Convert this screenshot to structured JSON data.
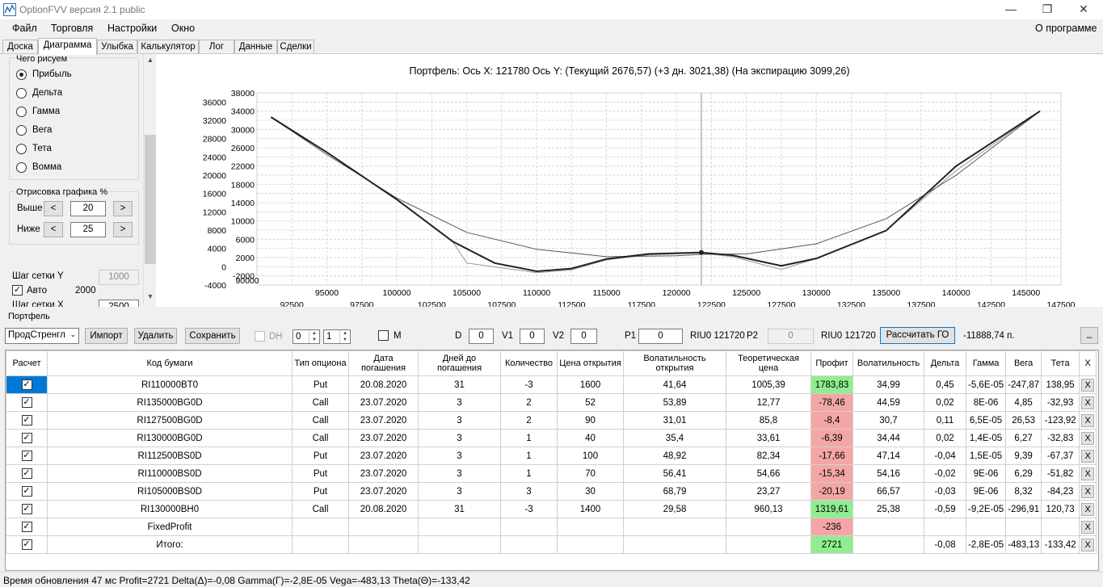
{
  "window": {
    "title": "OptionFVV версия 2.1 public",
    "minimize": "—",
    "restore": "❐",
    "close": "✕"
  },
  "menu": {
    "file": "Файл",
    "trading": "Торговля",
    "settings": "Настройки",
    "window": "Окно",
    "about": "О программе"
  },
  "tabs": [
    "Доска",
    "Диаграмма",
    "Улыбка",
    "Калькулятор",
    "Лог",
    "Данные",
    "Сделки"
  ],
  "left": {
    "what_title": "Чего рисуем",
    "options": [
      "Прибыль",
      "Дельта",
      "Гамма",
      "Вега",
      "Тета",
      "Вомма"
    ],
    "selected": 0,
    "draw_title": "Отрисовка графика %",
    "above_label": "Выше",
    "above_value": "20",
    "below_label": "Ниже",
    "below_value": "25",
    "dec": "<",
    "inc": ">",
    "grid_y_label": "Шаг сетки Y",
    "grid_y_value": "1000",
    "auto_label": "Авто",
    "auto_value": "2000",
    "grid_x_label": "Шаг сетки X",
    "grid_x_value": "2500"
  },
  "chart_data": {
    "type": "line",
    "title": "Портфель: Ось X: 121780 Ось Y:  (Текущий 2676,57)  (+3 дн. 3021,38)  (На экспирацию 3099,26)",
    "xlim": [
      90000,
      147500
    ],
    "ylim": [
      -4000,
      38000
    ],
    "x_ticks_upper": [
      95000,
      100000,
      105000,
      110000,
      115000,
      120000,
      125000,
      130000,
      135000,
      140000,
      145000
    ],
    "x_ticks_lower": [
      92500,
      97500,
      102500,
      107500,
      112500,
      117500,
      122500,
      127500,
      132500,
      137500,
      142500,
      147500
    ],
    "y_ticks_right": [
      -2000,
      2000,
      6000,
      10000,
      14000,
      18000,
      22000,
      26000,
      30000,
      34000,
      38000
    ],
    "y_ticks_left": [
      -4000,
      0,
      4000,
      8000,
      12000,
      16000,
      20000,
      24000,
      28000,
      32000,
      36000
    ],
    "cursor_x": 121780,
    "series": [
      {
        "values_x": [
          91000,
          95000,
          100000,
          104000,
          107000,
          110000,
          112500,
          115000,
          118000,
          121780,
          124000,
          127500,
          130000,
          135000,
          140000,
          146000
        ],
        "values_y": [
          32700,
          25000,
          14700,
          5500,
          800,
          -1000,
          -400,
          1700,
          2800,
          3100,
          2500,
          200,
          1800,
          7900,
          22000,
          34000
        ]
      },
      {
        "values_x": [
          91000,
          95000,
          100000,
          105000,
          110000,
          115000,
          120000,
          121780,
          125000,
          130000,
          135000,
          140000,
          146000
        ],
        "values_y": [
          32700,
          24500,
          15000,
          7500,
          3800,
          2200,
          2400,
          2700,
          2800,
          5000,
          10500,
          20000,
          34000
        ]
      },
      {
        "values_x": [
          91000,
          95000,
          100000,
          104000,
          105000,
          110000,
          112500,
          115000,
          118000,
          121780,
          124000,
          127500,
          130000,
          135000,
          140000,
          146000
        ],
        "values_y": [
          32700,
          25000,
          14700,
          5500,
          800,
          -1300,
          -700,
          1500,
          2600,
          3000,
          2200,
          -600,
          1800,
          7900,
          21000,
          34000
        ]
      }
    ]
  },
  "portfolio": {
    "label": "Портфель",
    "combo": "ПродСтренгл",
    "import": "Импорт",
    "delete": "Удалить",
    "save": "Сохранить",
    "dh": "DH",
    "spin1": "0",
    "spin2": "1",
    "m": "M",
    "d_label": "D",
    "d": "0",
    "v1_label": "V1",
    "v1": "0",
    "v2_label": "V2",
    "v2": "0",
    "p1_label": "P1",
    "p1": "0",
    "p1_ticker": "RIU0 121720",
    "p2_label": "P2",
    "p2": "0",
    "p2_ticker": "RIU0 121720",
    "calc": "Рассчитать ГО",
    "go_value": "-11888,74 п.",
    "collapse": "_"
  },
  "grid": {
    "headers": [
      "Расчет",
      "Код бумаги",
      "Тип опциона",
      "Дата погашения",
      "Дней до погашения",
      "Количество",
      "Цена открытия",
      "Волатильность открытия",
      "Теоретическая цена",
      "Профит",
      "Волатильность",
      "Дельта",
      "Гамма",
      "Вега",
      "Тета",
      "X"
    ],
    "rows": [
      [
        "",
        "RI110000BT0",
        "Put",
        "20.08.2020",
        "31",
        "-3",
        "1600",
        "41,64",
        "1005,39",
        "1783,83",
        "34,99",
        "0,45",
        "-5,6E-05",
        "-247,87",
        "138,95",
        "X"
      ],
      [
        "",
        "RI135000BG0D",
        "Call",
        "23.07.2020",
        "3",
        "2",
        "52",
        "53,89",
        "12,77",
        "-78,46",
        "44,59",
        "0,02",
        "8E-06",
        "4,85",
        "-32,93",
        "X"
      ],
      [
        "",
        "RI127500BG0D",
        "Call",
        "23.07.2020",
        "3",
        "2",
        "90",
        "31,01",
        "85,8",
        "-8,4",
        "30,7",
        "0,11",
        "6,5E-05",
        "26,53",
        "-123,92",
        "X"
      ],
      [
        "",
        "RI130000BG0D",
        "Call",
        "23.07.2020",
        "3",
        "1",
        "40",
        "35,4",
        "33,61",
        "-6,39",
        "34,44",
        "0,02",
        "1,4E-05",
        "6,27",
        "-32,83",
        "X"
      ],
      [
        "",
        "RI112500BS0D",
        "Put",
        "23.07.2020",
        "3",
        "1",
        "100",
        "48,92",
        "82,34",
        "-17,66",
        "47,14",
        "-0,04",
        "1,5E-05",
        "9,39",
        "-67,37",
        "X"
      ],
      [
        "",
        "RI110000BS0D",
        "Put",
        "23.07.2020",
        "3",
        "1",
        "70",
        "56,41",
        "54,66",
        "-15,34",
        "54,16",
        "-0,02",
        "9E-06",
        "6,29",
        "-51,82",
        "X"
      ],
      [
        "",
        "RI105000BS0D",
        "Put",
        "23.07.2020",
        "3",
        "3",
        "30",
        "68,79",
        "23,27",
        "-20,19",
        "66,57",
        "-0,03",
        "9E-06",
        "8,32",
        "-84,23",
        "X"
      ],
      [
        "",
        "RI130000BH0",
        "Call",
        "20.08.2020",
        "31",
        "-3",
        "1400",
        "29,58",
        "960,13",
        "1319,61",
        "25,38",
        "-0,59",
        "-9,2E-05",
        "-296,91",
        "120,73",
        "X"
      ],
      [
        "",
        "FixedProfit",
        "",
        "",
        "",
        "",
        "",
        "",
        "",
        "-236",
        "",
        "",
        "",
        "",
        "",
        "X"
      ],
      [
        "",
        "Итого:",
        "",
        "",
        "",
        "",
        "",
        "",
        "",
        "2721",
        "",
        "-0,08",
        "-2,8E-05",
        "-483,13",
        "-133,42",
        "X"
      ]
    ],
    "profit_class": [
      "pos",
      "neg",
      "neg",
      "neg",
      "neg",
      "neg",
      "neg",
      "pos",
      "neg",
      "pos"
    ]
  },
  "status": "Время обновления 47 мс  Profit=2721 Delta(Δ)=-0,08 Gamma(Γ)=-2,8E-05 Vega=-483,13 Theta(Θ)=-133,42"
}
